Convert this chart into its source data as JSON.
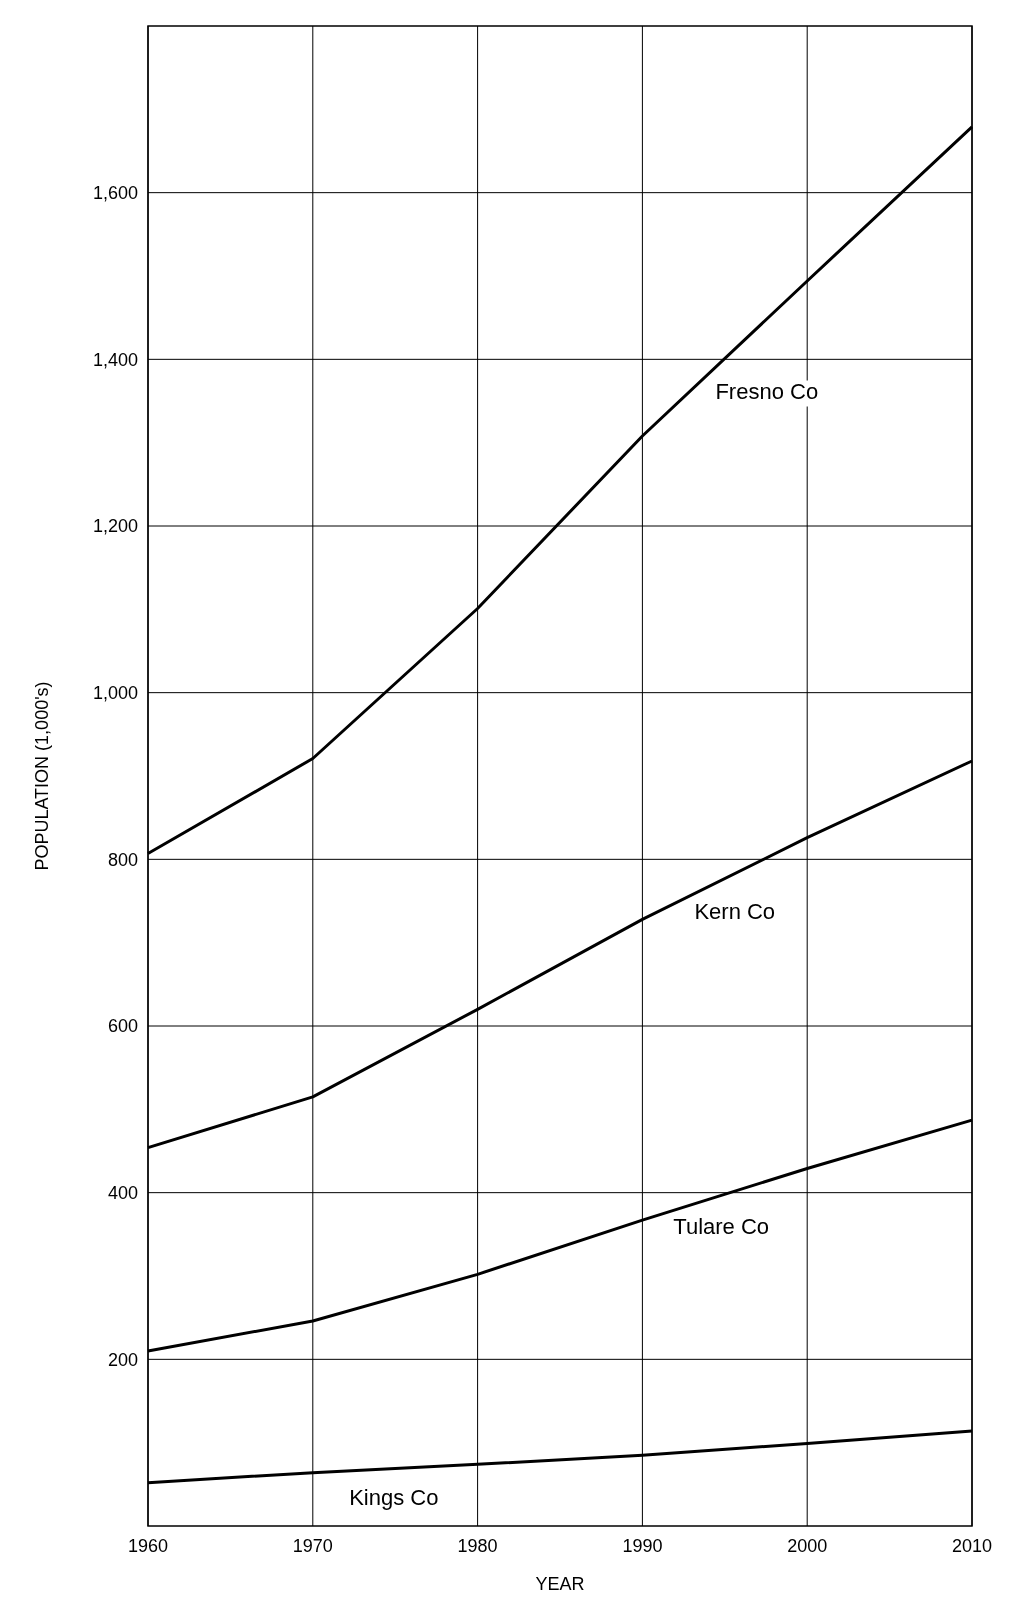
{
  "chart_data": {
    "type": "line",
    "xlabel": "YEAR",
    "ylabel": "POPULATION (1,000's)",
    "x": [
      1960,
      1970,
      1980,
      1990,
      2000,
      2010
    ],
    "xlim": [
      1960,
      2010
    ],
    "xticks": [
      1960,
      1970,
      1980,
      1990,
      2000,
      2010
    ],
    "ylim": [
      0,
      1800
    ],
    "yticks": [
      {
        "value": 200,
        "label": "200"
      },
      {
        "value": 400,
        "label": "400"
      },
      {
        "value": 600,
        "label": "600"
      },
      {
        "value": 800,
        "label": "800"
      },
      {
        "value": 1000,
        "label": "1,000"
      },
      {
        "value": 1200,
        "label": "1,200"
      },
      {
        "value": 1400,
        "label": "1,400"
      },
      {
        "value": 1600,
        "label": "1,600"
      }
    ],
    "grid": true,
    "legend": false,
    "marker": "none",
    "line_style": "solid",
    "series": [
      {
        "name": "Fresno Co",
        "color": "#000000",
        "values": [
          807,
          921,
          1101,
          1308,
          1494,
          1679
        ]
      },
      {
        "name": "Kern Co",
        "color": "#000000",
        "values": [
          454,
          515,
          620,
          728,
          826,
          918
        ]
      },
      {
        "name": "Tulare Co",
        "color": "#000000",
        "values": [
          210,
          246,
          302,
          367,
          429,
          487
        ]
      },
      {
        "name": "Kings Co",
        "color": "#000000",
        "values": [
          52,
          64,
          74,
          85,
          99,
          114
        ]
      }
    ]
  }
}
